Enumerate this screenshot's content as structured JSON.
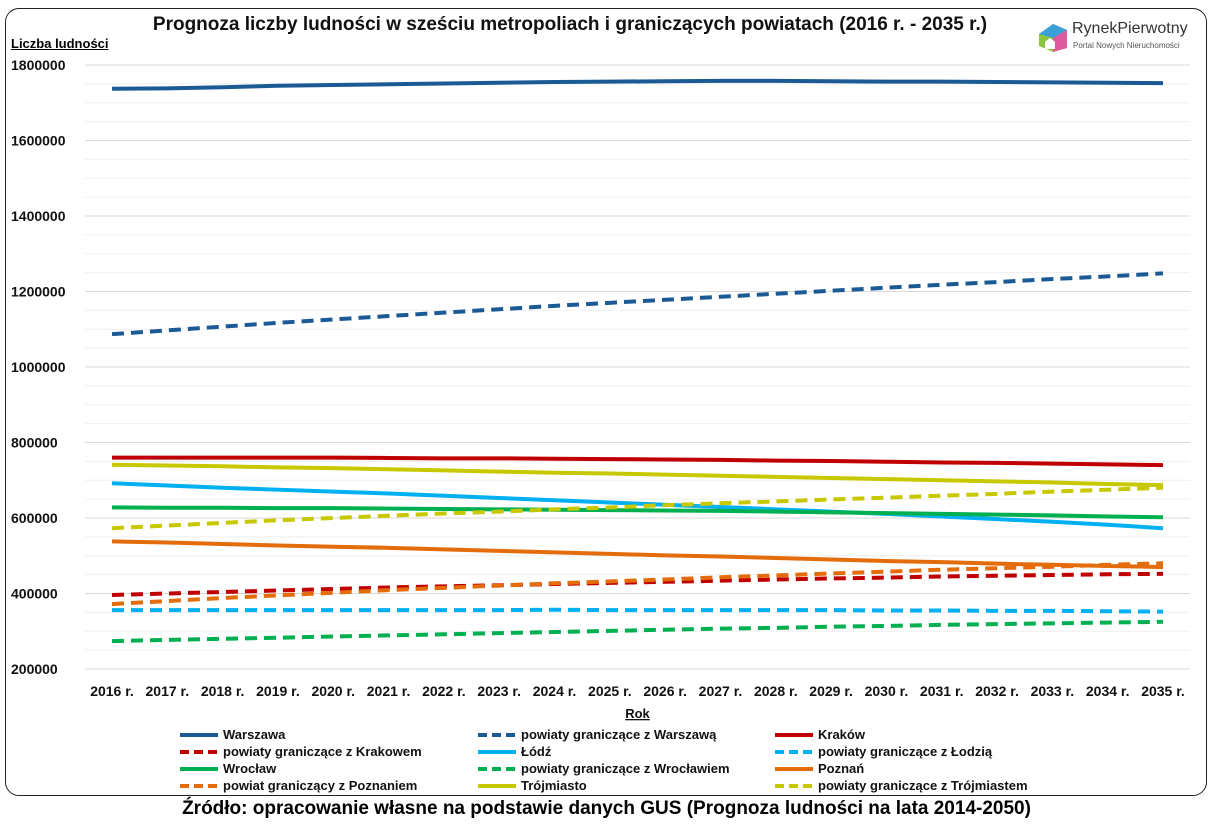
{
  "logo": {
    "name": "RynekPierwotny",
    "tagline": "Portal Nowych Nieruchomości"
  },
  "source": "Źródło: opracowanie własne na podstawie danych GUS (Prognoza ludności na lata 2014-2050)",
  "chart_data": {
    "type": "line",
    "title": "Prognoza liczby ludności w sześciu metropoliach i graniczących powiatach (2016 r. - 2035 r.)",
    "xlabel": "Rok",
    "ylabel": "Liczba ludności",
    "ylim": [
      200000,
      1800000
    ],
    "yticks": [
      "200000",
      "400000",
      "600000",
      "800000",
      "1000000",
      "1200000",
      "1400000",
      "1600000",
      "1800000"
    ],
    "grid": true,
    "legend_placement": "bottom",
    "categories": [
      "2016 r.",
      "2017 r.",
      "2018 r.",
      "2019 r.",
      "2020 r.",
      "2021 r.",
      "2022 r.",
      "2023 r.",
      "2024 r.",
      "2025 r.",
      "2026 r.",
      "2027 r.",
      "2028 r.",
      "2029 r.",
      "2030 r.",
      "2031 r.",
      "2032 r.",
      "2033 r.",
      "2034 r.",
      "2035 r."
    ],
    "series": [
      {
        "name": "Warszawa",
        "color": "#1c5a96",
        "dashed": false,
        "values": [
          1737000,
          1738000,
          1741000,
          1745000,
          1747000,
          1749000,
          1751000,
          1753000,
          1755000,
          1756000,
          1757000,
          1758000,
          1758000,
          1757000,
          1756000,
          1756000,
          1755000,
          1754000,
          1753000,
          1752000
        ]
      },
      {
        "name": "powiaty graniczące z Warszawą",
        "color": "#1c5a96",
        "dashed": true,
        "values": [
          1087000,
          1097000,
          1107000,
          1117000,
          1126000,
          1135000,
          1144000,
          1153000,
          1162000,
          1170000,
          1178000,
          1186000,
          1194000,
          1202000,
          1210000,
          1218000,
          1225000,
          1233000,
          1240000,
          1248000
        ]
      },
      {
        "name": "Kraków",
        "color": "#c00000",
        "dashed": false,
        "values": [
          760000,
          760000,
          760000,
          760000,
          760000,
          759000,
          758000,
          758000,
          757000,
          756000,
          755000,
          754000,
          752000,
          751000,
          749000,
          747000,
          746000,
          744000,
          742000,
          740000
        ]
      },
      {
        "name": "powiaty graniczące z Krakowem",
        "color": "#c00000",
        "dashed": true,
        "values": [
          396000,
          400000,
          404000,
          408000,
          412000,
          416000,
          419000,
          422000,
          425000,
          428000,
          431000,
          434000,
          437000,
          440000,
          442000,
          445000,
          447000,
          449000,
          451000,
          452000
        ]
      },
      {
        "name": "Łódź",
        "color": "#00b0f0",
        "dashed": false,
        "values": [
          692000,
          686000,
          680000,
          675000,
          670000,
          665000,
          659000,
          653000,
          647000,
          641000,
          635000,
          629000,
          623000,
          617000,
          611000,
          604000,
          597000,
          590000,
          582000,
          573000
        ]
      },
      {
        "name": "powiaty graniczące z Łodzią",
        "color": "#00b0f0",
        "dashed": true,
        "values": [
          356000,
          356000,
          356000,
          356000,
          356000,
          356000,
          356000,
          356000,
          357000,
          356000,
          356000,
          356000,
          356000,
          356000,
          355000,
          355000,
          354000,
          354000,
          353000,
          352000
        ]
      },
      {
        "name": "Wrocław",
        "color": "#00b050",
        "dashed": false,
        "values": [
          628000,
          627000,
          627000,
          626000,
          626000,
          625000,
          624000,
          623000,
          622000,
          621000,
          620000,
          619000,
          617000,
          615000,
          613000,
          611000,
          609000,
          607000,
          604000,
          602000
        ]
      },
      {
        "name": "powiaty graniczące z Wrocławiem",
        "color": "#00b050",
        "dashed": true,
        "values": [
          274000,
          277000,
          280000,
          283000,
          286000,
          289000,
          292000,
          295000,
          298000,
          301000,
          304000,
          307000,
          309000,
          312000,
          314000,
          317000,
          319000,
          321000,
          323000,
          325000
        ]
      },
      {
        "name": "Poznań",
        "color": "#e46c0a",
        "dashed": false,
        "values": [
          538000,
          535000,
          531000,
          527000,
          524000,
          521000,
          517000,
          513000,
          509000,
          505000,
          501000,
          498000,
          494000,
          490000,
          486000,
          483000,
          479000,
          476000,
          473000,
          470000
        ]
      },
      {
        "name": "powiat graniczący z Poznaniem",
        "color": "#e46c0a",
        "dashed": true,
        "values": [
          372000,
          380000,
          388000,
          395000,
          402000,
          409000,
          415000,
          421000,
          427000,
          432000,
          437000,
          443000,
          448000,
          453000,
          458000,
          463000,
          467000,
          471000,
          476000,
          480000
        ]
      },
      {
        "name": "Trójmiasto",
        "color": "#c8c800",
        "dashed": false,
        "values": [
          741000,
          739000,
          737000,
          734000,
          732000,
          729000,
          726000,
          723000,
          720000,
          718000,
          715000,
          712000,
          709000,
          706000,
          703000,
          700000,
          697000,
          694000,
          690000,
          687000
        ]
      },
      {
        "name": "powiaty graniczące z Trójmiastem",
        "color": "#c8c800",
        "dashed": true,
        "values": [
          573000,
          580000,
          587000,
          594000,
          600000,
          606000,
          612000,
          617000,
          623000,
          628000,
          634000,
          639000,
          644000,
          649000,
          654000,
          659000,
          664000,
          670000,
          675000,
          680000
        ]
      }
    ]
  }
}
